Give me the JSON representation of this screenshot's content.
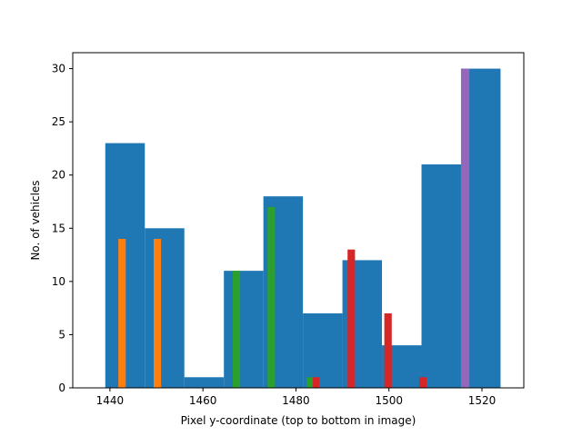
{
  "chart_data": {
    "type": "bar",
    "title": "",
    "xlabel": "Pixel y-coordinate (top to bottom in image)",
    "ylabel": "No. of vehicles",
    "xlim": [
      1432,
      1529
    ],
    "ylim": [
      0,
      31.5
    ],
    "x_ticks": [
      1440,
      1460,
      1480,
      1500,
      1520
    ],
    "y_ticks": [
      0,
      5,
      10,
      15,
      20,
      25,
      30
    ],
    "grid": false,
    "legend": "none",
    "histogram": {
      "color": "#1f77b4",
      "bins": [
        {
          "x0": 1439,
          "x1": 1447.5,
          "count": 23
        },
        {
          "x0": 1447.5,
          "x1": 1456,
          "count": 15
        },
        {
          "x0": 1456,
          "x1": 1464.5,
          "count": 1
        },
        {
          "x0": 1464.5,
          "x1": 1473,
          "count": 11
        },
        {
          "x0": 1473,
          "x1": 1481.5,
          "count": 18
        },
        {
          "x0": 1481.5,
          "x1": 1490,
          "count": 7
        },
        {
          "x0": 1490,
          "x1": 1498.5,
          "count": 12
        },
        {
          "x0": 1498.5,
          "x1": 1507,
          "count": 4
        },
        {
          "x0": 1507,
          "x1": 1515.5,
          "count": 21
        },
        {
          "x0": 1515.5,
          "x1": 1524,
          "count": 30
        }
      ]
    },
    "series": [
      {
        "color": "#ff7f0e",
        "bars": [
          {
            "x0": 1441.8,
            "x1": 1443.4,
            "value": 14
          },
          {
            "x0": 1449.4,
            "x1": 1451,
            "value": 14
          }
        ]
      },
      {
        "color": "#2ca02c",
        "bars": [
          {
            "x0": 1466.4,
            "x1": 1468,
            "value": 11
          },
          {
            "x0": 1473.9,
            "x1": 1475.5,
            "value": 17
          },
          {
            "x0": 1482.3,
            "x1": 1483.6,
            "value": 1
          }
        ]
      },
      {
        "color": "#d62728",
        "bars": [
          {
            "x0": 1483.6,
            "x1": 1485,
            "value": 1
          },
          {
            "x0": 1491.1,
            "x1": 1492.7,
            "value": 13
          },
          {
            "x0": 1499,
            "x1": 1500.6,
            "value": 7
          },
          {
            "x0": 1506.5,
            "x1": 1508.1,
            "value": 1
          }
        ]
      },
      {
        "color": "#9467bd",
        "bars": [
          {
            "x0": 1515.5,
            "x1": 1517.3,
            "value": 30
          }
        ]
      }
    ]
  }
}
